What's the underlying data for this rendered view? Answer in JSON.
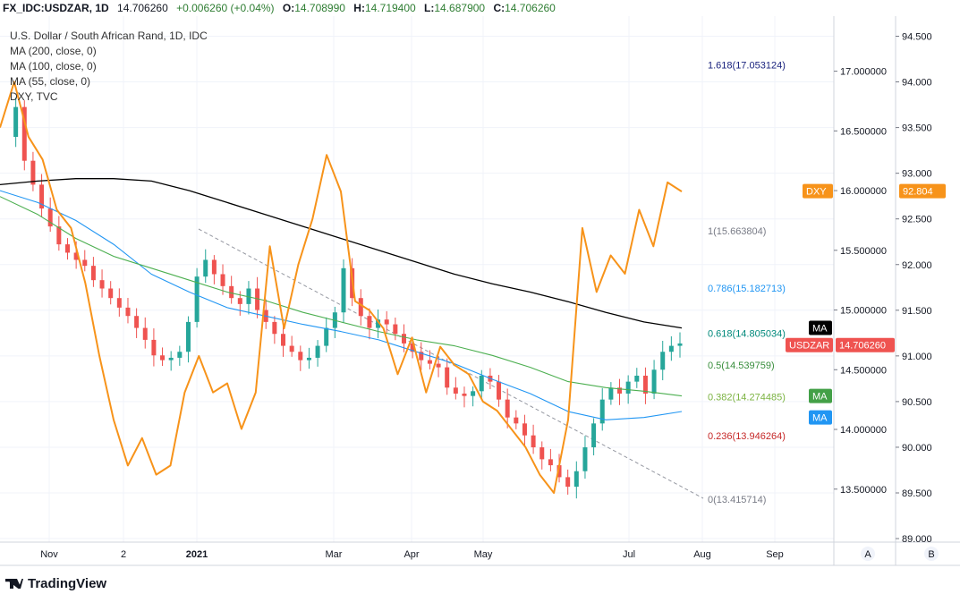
{
  "header": {
    "symbol": "FX_IDC:USDZAR, 1D",
    "last": "14.706260",
    "change": "+0.006260 (+0.04%)",
    "o_label": "O:",
    "o": "14.708990",
    "h_label": "H:",
    "h": "14.719400",
    "l_label": "L:",
    "l": "14.687900",
    "c_label": "C:",
    "c": "14.706260"
  },
  "legend": {
    "title": "U.S. Dollar / South African Rand, 1D, IDC",
    "items": [
      "MA (200, close, 0)",
      "MA (100, close, 0)",
      "MA (55, close, 0)",
      "DXY, TVC"
    ]
  },
  "tags": {
    "dxy_label": "DXY",
    "dxy_value": "92.804",
    "usdzar_label": "USDZAR",
    "usdzar_value": "14.706260",
    "ma_label": "MA"
  },
  "axis_letters": {
    "a": "A",
    "b": "B"
  },
  "footer": {
    "brand": "TradingView"
  },
  "colors": {
    "up": "#26a69a",
    "down": "#ef5350",
    "ma200": "#000000",
    "ma100": "#2196f3",
    "ma55": "#4caf50",
    "dxy": "#f7931a",
    "usdzar_tag": "#ef5350",
    "dxy_tag": "#f7931a"
  },
  "chart_data": {
    "type": "line",
    "title": "U.S. Dollar / South African Rand, 1D, IDC",
    "x_ticks": [
      "Nov",
      "2",
      "2021",
      "Mar",
      "Apr",
      "May",
      "Jul",
      "Aug",
      "Sep"
    ],
    "y_left_ticks": [
      "17.000000",
      "16.500000",
      "16.000000",
      "15.500000",
      "15.000000",
      "14.500000",
      "14.000000",
      "13.500000"
    ],
    "y_right_ticks": [
      "94.500",
      "94.000",
      "93.500",
      "93.000",
      "92.500",
      "92.000",
      "91.500",
      "91.000",
      "90.500",
      "90.000",
      "89.500",
      "89.000"
    ],
    "ylim_left": [
      13.23,
      17.85
    ],
    "ylim_right": [
      89.0,
      94.5
    ],
    "fibonacci": [
      {
        "label": "1.618(17.053124)",
        "level": 1.618,
        "value": 17.053124,
        "color": "#1a237e"
      },
      {
        "label": "1(15.663804)",
        "level": 1,
        "value": 15.663804,
        "color": "#787b86"
      },
      {
        "label": "0.786(15.182713)",
        "level": 0.786,
        "value": 15.182713,
        "color": "#2196f3"
      },
      {
        "label": "0.618(14.805034)",
        "level": 0.618,
        "value": 14.805034,
        "color": "#00897b"
      },
      {
        "label": "0.5(14.539759)",
        "level": 0.5,
        "value": 14.539759,
        "color": "#388e3c"
      },
      {
        "label": "0.382(14.274485)",
        "level": 0.382,
        "value": 14.274485,
        "color": "#7cb342"
      },
      {
        "label": "0.236(13.946264)",
        "level": 0.236,
        "value": 13.946264,
        "color": "#c62828"
      },
      {
        "label": "0(13.415714)",
        "level": 0,
        "value": 13.415714,
        "color": "#787b86"
      }
    ],
    "series": [
      {
        "name": "USDZAR",
        "values": [
          16.45,
          16.7,
          16.25,
          16.05,
          15.85,
          15.7,
          15.55,
          15.48,
          15.42,
          15.37,
          15.25,
          15.18,
          15.1,
          15.02,
          14.95,
          14.85,
          14.75,
          14.62,
          14.58,
          14.6,
          14.65,
          14.9,
          15.28,
          15.42,
          15.3,
          15.2,
          15.1,
          15.05,
          15.18,
          15.0,
          14.9,
          14.8,
          14.7,
          14.65,
          14.58,
          14.6,
          14.7,
          14.85,
          14.98,
          15.35,
          15.1,
          14.95,
          14.85,
          14.92,
          14.88,
          14.8,
          14.72,
          14.65,
          14.58,
          14.55,
          14.52,
          14.35,
          14.3,
          14.28,
          14.32,
          14.45,
          14.4,
          14.25,
          14.1,
          14.05,
          13.95,
          13.85,
          13.75,
          13.7,
          13.6,
          13.52,
          13.65,
          13.85,
          14.05,
          14.25,
          14.35,
          14.3,
          14.4,
          14.45,
          14.3,
          14.5,
          14.65,
          14.7,
          14.72
        ]
      },
      {
        "name": "MA (200, close, 0)",
        "values": [
          16.05,
          16.08,
          16.1,
          16.1,
          16.08,
          16.0,
          15.9,
          15.8,
          15.7,
          15.6,
          15.5,
          15.4,
          15.3,
          15.22,
          15.15,
          15.07,
          14.98,
          14.9,
          14.85
        ]
      },
      {
        "name": "MA (100, close, 0)",
        "values": [
          16.0,
          15.9,
          15.75,
          15.55,
          15.3,
          15.15,
          15.02,
          14.95,
          14.88,
          14.82,
          14.75,
          14.65,
          14.55,
          14.42,
          14.3,
          14.15,
          14.08,
          14.1,
          14.15
        ]
      },
      {
        "name": "MA (55, close, 0)",
        "values": [
          15.95,
          15.8,
          15.6,
          15.45,
          15.35,
          15.25,
          15.15,
          15.08,
          14.98,
          14.9,
          14.82,
          14.75,
          14.7,
          14.62,
          14.52,
          14.4,
          14.35,
          14.32,
          14.28
        ]
      },
      {
        "name": "DXY, TVC",
        "values": [
          93.5,
          94.0,
          93.4,
          93.15,
          92.6,
          92.4,
          91.8,
          91.0,
          90.3,
          89.8,
          90.1,
          89.7,
          89.8,
          90.6,
          91.0,
          90.6,
          90.7,
          90.2,
          90.6,
          92.2,
          91.3,
          92.0,
          92.5,
          93.2,
          92.8,
          91.6,
          91.5,
          91.3,
          90.8,
          91.2,
          90.6,
          91.1,
          90.9,
          90.8,
          90.5,
          90.4,
          90.2,
          90.0,
          89.7,
          89.5,
          90.3,
          92.4,
          91.7,
          92.1,
          91.9,
          92.6,
          92.2,
          92.9,
          92.8
        ]
      }
    ]
  }
}
